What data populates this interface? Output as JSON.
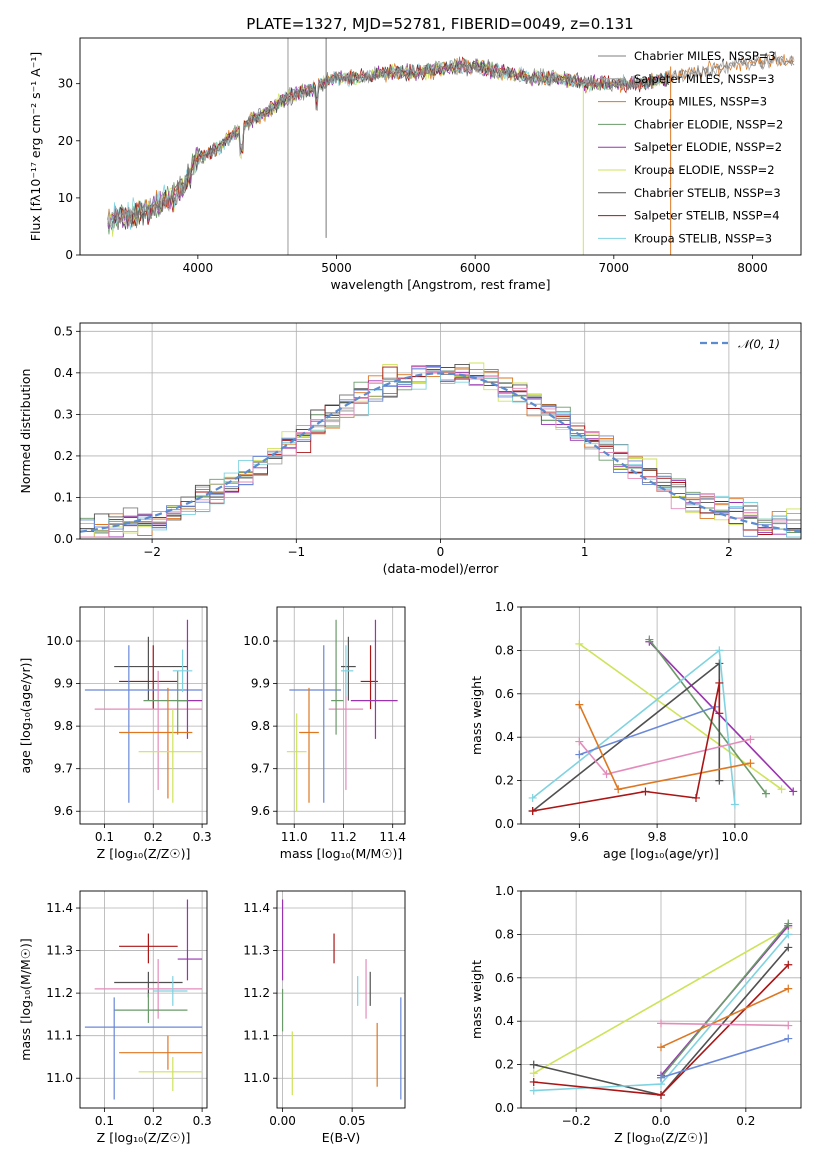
{
  "colors": {
    "chabrier_miles": "#7f7f7f",
    "salpeter_miles": "#a3a3a3",
    "kroupa_miles": "#dd7722",
    "chabrier_elodie": "#6a9a6a",
    "salpeter_elodie": "#9a33b0",
    "kroupa_elodie": "#cfe35a",
    "chabrier_stelib": "#505050",
    "salpeter_stelib": "#aa1515",
    "kroupa_stelib": "#7fd3e0",
    "blue": "#6a88d8",
    "pink": "#e38cbb",
    "normal": "#5b8bd0"
  },
  "chart_data": [
    {
      "id": "spectrum",
      "type": "line",
      "title": "PLATE=1327, MJD=52781, FIBERID=0049, z=0.131",
      "xlabel": "wavelength [Angstrom, rest frame]",
      "ylabel": "Flux [fλ10⁻¹⁷ erg cm⁻² s⁻¹ A⁻¹]",
      "xlim": [
        3150,
        8350
      ],
      "ylim": [
        0,
        38
      ],
      "xticks": [
        "4000",
        "5000",
        "6000",
        "7000",
        "8000"
      ],
      "yticks": [
        "0",
        "10",
        "20",
        "30"
      ],
      "continuum": {
        "x": [
          3350,
          3500,
          3650,
          3800,
          3900,
          4000,
          4100,
          4200,
          4300,
          4400,
          4500,
          4600,
          4700,
          4800,
          4900,
          5000,
          5200,
          5400,
          5600,
          5800,
          6000,
          6200,
          6400,
          6600,
          6800,
          7000,
          7200,
          7400,
          7600,
          7800,
          8000
        ],
        "y": [
          6,
          7,
          8,
          10,
          12,
          17,
          18,
          20,
          22,
          24,
          25,
          27,
          28,
          29,
          30,
          31,
          31,
          32,
          32,
          33,
          33,
          32,
          31,
          31,
          30,
          30,
          30,
          31,
          32,
          33,
          34
        ]
      },
      "legend": [
        "Chabrier MILES, NSSP=3",
        "Salpeter MILES, NSSP=3",
        "Kroupa MILES, NSSP=3",
        "Chabrier ELODIE, NSSP=2",
        "Salpeter ELODIE, NSSP=2",
        "Kroupa ELODIE, NSSP=2",
        "Chabrier STELIB, NSSP=3",
        "Salpeter STELIB, NSSP=4",
        "Kroupa STELIB, NSSP=3"
      ],
      "legend_placement": "right",
      "grid": false
    },
    {
      "id": "residuals",
      "type": "bar",
      "xlabel": "(data-model)/error",
      "ylabel": "Normed distribution",
      "xlim": [
        -2.5,
        2.5
      ],
      "ylim": [
        0,
        0.52
      ],
      "xticks": [
        "−2",
        "−1",
        "0",
        "1",
        "2"
      ],
      "yticks": [
        "0.0",
        "0.1",
        "0.2",
        "0.3",
        "0.4",
        "0.5"
      ],
      "legend": [
        "𝒩(0, 1)"
      ],
      "legend_placement": "top-right",
      "grid": true
    },
    {
      "id": "age_vs_Z",
      "type": "scatter",
      "xlabel": "Z [log₁₀(Z/Z☉)]",
      "ylabel": "age  [log₁₀(age/yr)]",
      "xlim": [
        0.05,
        0.31
      ],
      "ylim": [
        9.57,
        10.08
      ],
      "xticks": [
        "0.1",
        "0.2",
        "0.3"
      ],
      "yticks": [
        "9.6",
        "9.7",
        "9.8",
        "9.9",
        "10.0"
      ],
      "points": [
        {
          "x": 0.19,
          "xlo": 0.12,
          "xhi": 0.27,
          "y": 9.94,
          "ylo": 9.86,
          "yhi": 10.01,
          "c": "chabrier_stelib"
        },
        {
          "x": 0.2,
          "xlo": 0.13,
          "xhi": 0.25,
          "y": 9.905,
          "ylo": 9.84,
          "yhi": 9.99,
          "c": "salpeter_stelib"
        },
        {
          "x": 0.15,
          "xlo": 0.06,
          "xhi": 0.3,
          "y": 9.885,
          "ylo": 9.62,
          "yhi": 9.99,
          "c": "blue"
        },
        {
          "x": 0.21,
          "xlo": 0.08,
          "xhi": 0.3,
          "y": 9.84,
          "ylo": 9.65,
          "yhi": 9.93,
          "c": "pink"
        },
        {
          "x": 0.27,
          "xlo": 0.25,
          "xhi": 0.3,
          "y": 9.86,
          "ylo": 9.77,
          "yhi": 10.05,
          "c": "salpeter_elodie"
        },
        {
          "x": 0.25,
          "xlo": 0.18,
          "xhi": 0.27,
          "y": 9.86,
          "ylo": 9.78,
          "yhi": 9.93,
          "c": "chabrier_elodie"
        },
        {
          "x": 0.23,
          "xlo": 0.13,
          "xhi": 0.28,
          "y": 9.785,
          "ylo": 9.63,
          "yhi": 9.89,
          "c": "kroupa_miles"
        },
        {
          "x": 0.24,
          "xlo": 0.17,
          "xhi": 0.3,
          "y": 9.74,
          "ylo": 9.62,
          "yhi": 9.84,
          "c": "kroupa_elodie"
        },
        {
          "x": 0.26,
          "xlo": 0.24,
          "xhi": 0.28,
          "y": 9.93,
          "ylo": 9.88,
          "yhi": 9.98,
          "c": "kroupa_stelib"
        }
      ],
      "grid": true
    },
    {
      "id": "age_vs_mass",
      "type": "scatter",
      "xlabel": "mass [log₁₀(M/M☉)]",
      "ylabel": "",
      "xlim": [
        10.93,
        11.45
      ],
      "ylim": [
        9.57,
        10.08
      ],
      "xticks": [
        "11.0",
        "11.2",
        "11.4"
      ],
      "yticks": [
        "9.6",
        "9.7",
        "9.8",
        "9.9",
        "10.0"
      ],
      "points": [
        {
          "x": 11.22,
          "xlo": 11.19,
          "xhi": 11.25,
          "y": 9.94,
          "ylo": 9.86,
          "yhi": 10.01,
          "c": "chabrier_stelib"
        },
        {
          "x": 11.31,
          "xlo": 11.27,
          "xhi": 11.34,
          "y": 9.905,
          "ylo": 9.84,
          "yhi": 9.99,
          "c": "salpeter_stelib"
        },
        {
          "x": 11.12,
          "xlo": 10.98,
          "xhi": 11.19,
          "y": 9.885,
          "ylo": 9.62,
          "yhi": 9.99,
          "c": "blue"
        },
        {
          "x": 11.21,
          "xlo": 11.14,
          "xhi": 11.28,
          "y": 9.84,
          "ylo": 9.65,
          "yhi": 9.93,
          "c": "pink"
        },
        {
          "x": 11.33,
          "xlo": 11.23,
          "xhi": 11.42,
          "y": 9.86,
          "ylo": 9.77,
          "yhi": 10.05,
          "c": "salpeter_elodie"
        },
        {
          "x": 11.17,
          "xlo": 11.15,
          "xhi": 11.2,
          "y": 9.86,
          "ylo": 9.78,
          "yhi": 10.05,
          "c": "chabrier_elodie"
        },
        {
          "x": 11.06,
          "xlo": 11.02,
          "xhi": 11.1,
          "y": 9.785,
          "ylo": 9.62,
          "yhi": 9.89,
          "c": "kroupa_miles"
        },
        {
          "x": 11.01,
          "xlo": 10.97,
          "xhi": 11.05,
          "y": 9.74,
          "ylo": 9.6,
          "yhi": 9.83,
          "c": "kroupa_elodie"
        },
        {
          "x": 11.21,
          "xlo": 11.19,
          "xhi": 11.24,
          "y": 9.93,
          "ylo": 9.87,
          "yhi": 9.99,
          "c": "kroupa_stelib"
        }
      ],
      "grid": true
    },
    {
      "id": "weight_vs_age",
      "type": "line",
      "xlabel": "age  [log₁₀(age/yr)]",
      "ylabel": "mass weight",
      "xlim": [
        9.45,
        10.17
      ],
      "ylim": [
        0.0,
        1.0
      ],
      "xticks": [
        "9.6",
        "9.8",
        "10.0"
      ],
      "yticks": [
        "0.0",
        "0.2",
        "0.4",
        "0.6",
        "0.8",
        "1.0"
      ],
      "series": [
        {
          "c": "kroupa_elodie",
          "x": [
            9.6,
            10.12
          ],
          "y": [
            0.83,
            0.16
          ]
        },
        {
          "c": "salpeter_elodie",
          "x": [
            9.78,
            10.15
          ],
          "y": [
            0.84,
            0.15
          ]
        },
        {
          "c": "chabrier_elodie",
          "x": [
            9.78,
            10.08
          ],
          "y": [
            0.85,
            0.14
          ]
        },
        {
          "c": "chabrier_stelib",
          "x": [
            9.48,
            9.96,
            9.96
          ],
          "y": [
            0.06,
            0.74,
            0.2
          ]
        },
        {
          "c": "kroupa_stelib",
          "x": [
            9.48,
            9.96,
            10.0
          ],
          "y": [
            0.12,
            0.8,
            0.09
          ]
        },
        {
          "c": "blue",
          "x": [
            9.6,
            9.95
          ],
          "y": [
            0.32,
            0.54
          ]
        },
        {
          "c": "pink",
          "x": [
            9.6,
            9.67,
            10.04
          ],
          "y": [
            0.38,
            0.23,
            0.39
          ]
        },
        {
          "c": "kroupa_miles",
          "x": [
            9.6,
            9.7,
            10.04
          ],
          "y": [
            0.55,
            0.16,
            0.28
          ]
        },
        {
          "c": "salpeter_stelib",
          "x": [
            9.48,
            9.77,
            9.9,
            9.96,
            9.96
          ],
          "y": [
            0.06,
            0.15,
            0.12,
            0.65,
            0.51
          ]
        }
      ],
      "grid": true
    },
    {
      "id": "mass_vs_Z",
      "type": "scatter",
      "xlabel": "Z [log₁₀(Z/Z☉)]",
      "ylabel": "mass [log₁₀(M/M☉)]",
      "xlim": [
        0.05,
        0.31
      ],
      "ylim": [
        10.93,
        11.44
      ],
      "xticks": [
        "0.1",
        "0.2",
        "0.3"
      ],
      "yticks": [
        "11.0",
        "11.1",
        "11.2",
        "11.3",
        "11.4"
      ],
      "points": [
        {
          "x": 0.19,
          "xlo": 0.13,
          "xhi": 0.25,
          "y": 11.31,
          "ylo": 11.27,
          "yhi": 11.34,
          "c": "salpeter_stelib"
        },
        {
          "x": 0.27,
          "xlo": 0.25,
          "xhi": 0.3,
          "y": 11.28,
          "ylo": 11.23,
          "yhi": 11.42,
          "c": "salpeter_elodie"
        },
        {
          "x": 0.19,
          "xlo": 0.12,
          "xhi": 0.26,
          "y": 11.225,
          "ylo": 11.19,
          "yhi": 11.25,
          "c": "chabrier_stelib"
        },
        {
          "x": 0.21,
          "xlo": 0.08,
          "xhi": 0.3,
          "y": 11.21,
          "ylo": 11.14,
          "yhi": 11.28,
          "c": "pink"
        },
        {
          "x": 0.24,
          "xlo": 0.2,
          "xhi": 0.27,
          "y": 11.205,
          "ylo": 11.17,
          "yhi": 11.24,
          "c": "kroupa_stelib"
        },
        {
          "x": 0.19,
          "xlo": 0.12,
          "xhi": 0.27,
          "y": 11.16,
          "ylo": 11.13,
          "yhi": 11.2,
          "c": "chabrier_elodie"
        },
        {
          "x": 0.12,
          "xlo": 0.06,
          "xhi": 0.3,
          "y": 11.12,
          "ylo": 10.95,
          "yhi": 11.19,
          "c": "blue"
        },
        {
          "x": 0.23,
          "xlo": 0.13,
          "xhi": 0.3,
          "y": 11.06,
          "ylo": 11.02,
          "yhi": 11.1,
          "c": "kroupa_miles"
        },
        {
          "x": 0.24,
          "xlo": 0.17,
          "xhi": 0.3,
          "y": 11.015,
          "ylo": 10.97,
          "yhi": 11.05,
          "c": "kroupa_elodie"
        }
      ],
      "grid": true
    },
    {
      "id": "mass_vs_ebv",
      "type": "scatter",
      "xlabel": "E(B-V)",
      "ylabel": "",
      "xlim": [
        -0.004,
        0.088
      ],
      "ylim": [
        10.93,
        11.44
      ],
      "xticks": [
        "0.00",
        "0.05"
      ],
      "yticks": [
        "11.0",
        "11.1",
        "11.2",
        "11.3",
        "11.4"
      ],
      "points": [
        {
          "x": 0.037,
          "y": 11.305,
          "ylo": 11.27,
          "yhi": 11.34,
          "c": "salpeter_stelib"
        },
        {
          "x": 0.0,
          "y": 11.32,
          "ylo": 11.23,
          "yhi": 11.42,
          "c": "salpeter_elodie"
        },
        {
          "x": 0.063,
          "y": 11.21,
          "ylo": 11.17,
          "yhi": 11.25,
          "c": "chabrier_stelib"
        },
        {
          "x": 0.06,
          "y": 11.22,
          "ylo": 11.14,
          "yhi": 11.28,
          "c": "pink"
        },
        {
          "x": 0.054,
          "y": 11.205,
          "ylo": 11.17,
          "yhi": 11.24,
          "c": "kroupa_stelib"
        },
        {
          "x": 0.0,
          "y": 11.16,
          "ylo": 11.11,
          "yhi": 11.21,
          "c": "chabrier_elodie"
        },
        {
          "x": 0.085,
          "y": 11.07,
          "ylo": 10.95,
          "yhi": 11.19,
          "c": "blue"
        },
        {
          "x": 0.068,
          "y": 11.06,
          "ylo": 10.98,
          "yhi": 11.13,
          "c": "kroupa_miles"
        },
        {
          "x": 0.007,
          "y": 11.03,
          "ylo": 10.96,
          "yhi": 11.11,
          "c": "kroupa_elodie"
        }
      ],
      "grid": true
    },
    {
      "id": "weight_vs_Z",
      "type": "line",
      "xlabel": "Z [log₁₀(Z/Z☉)]",
      "ylabel": "mass weight",
      "xlim": [
        -0.33,
        0.33
      ],
      "ylim": [
        0.0,
        1.0
      ],
      "xticks": [
        "−0.2",
        "0.0",
        "0.2"
      ],
      "yticks": [
        "0.0",
        "0.2",
        "0.4",
        "0.6",
        "0.8",
        "1.0"
      ],
      "series": [
        {
          "c": "kroupa_elodie",
          "x": [
            -0.3,
            0.3
          ],
          "y": [
            0.16,
            0.83
          ]
        },
        {
          "c": "chabrier_stelib",
          "x": [
            -0.3,
            0.0,
            0.3
          ],
          "y": [
            0.2,
            0.06,
            0.74
          ]
        },
        {
          "c": "kroupa_stelib",
          "x": [
            -0.3,
            0.0,
            0.3
          ],
          "y": [
            0.08,
            0.11,
            0.8
          ]
        },
        {
          "c": "salpeter_stelib",
          "x": [
            -0.3,
            0.0,
            0.3
          ],
          "y": [
            0.12,
            0.06,
            0.66
          ]
        },
        {
          "c": "salpeter_elodie",
          "x": [
            0.0,
            0.3
          ],
          "y": [
            0.15,
            0.84
          ]
        },
        {
          "c": "chabrier_elodie",
          "x": [
            0.0,
            0.3
          ],
          "y": [
            0.14,
            0.85
          ]
        },
        {
          "c": "kroupa_miles",
          "x": [
            0.0,
            0.3
          ],
          "y": [
            0.28,
            0.55
          ]
        },
        {
          "c": "pink",
          "x": [
            0.0,
            0.3
          ],
          "y": [
            0.39,
            0.38
          ]
        },
        {
          "c": "blue",
          "x": [
            0.0,
            0.3
          ],
          "y": [
            0.14,
            0.32
          ]
        }
      ],
      "grid": true
    }
  ]
}
